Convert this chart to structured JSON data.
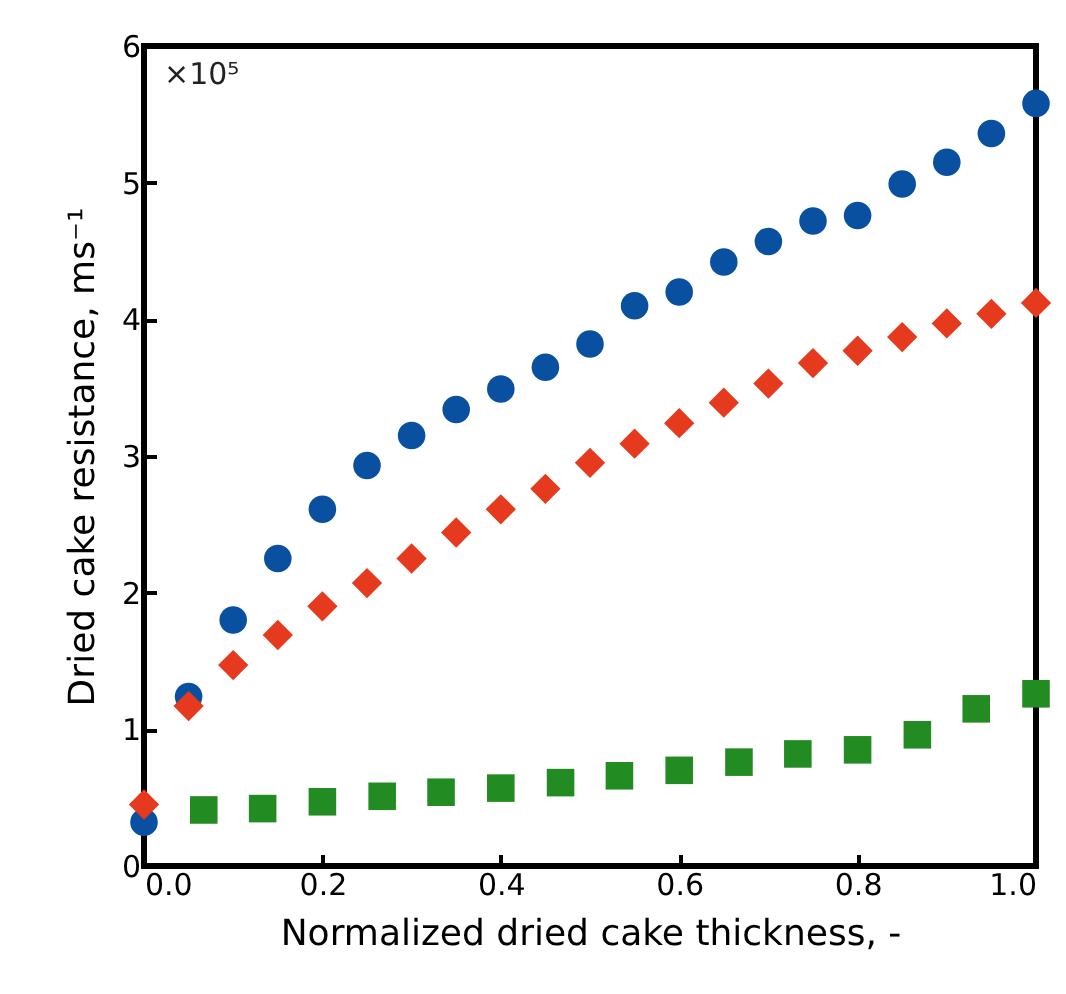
{
  "chart_data": {
    "type": "scatter",
    "xlabel": "Normalized dried cake thickness, -",
    "ylabel": "Dried cake resistance, ms⁻¹",
    "annotations": [
      "×10⁵"
    ],
    "xlim": [
      0,
      1
    ],
    "ylim": [
      0,
      6
    ],
    "xticks": [
      {
        "value": 0,
        "label": "0.0"
      },
      0.2,
      0.4,
      0.6,
      0.8,
      {
        "value": 1,
        "label": "1.0"
      }
    ],
    "yticks": [
      0,
      1,
      2,
      3,
      4,
      5,
      6
    ],
    "series": [
      {
        "color": "#0a50a0",
        "marker": "circle",
        "x": [
          0,
          0.05,
          0.1,
          0.15,
          0.2,
          0.25,
          0.3,
          0.35,
          0.4,
          0.45,
          0.5,
          0.55,
          0.6,
          0.65,
          0.7,
          0.75,
          0.8,
          0.85,
          0.9,
          0.95,
          1
        ],
        "values": [
          0.32,
          1.24,
          1.8,
          2.25,
          2.61,
          2.93,
          3.15,
          3.34,
          3.49,
          3.65,
          3.82,
          4.1,
          4.2,
          4.42,
          4.57,
          4.72,
          4.76,
          4.99,
          5.15,
          5.36,
          5.58
        ]
      },
      {
        "color": "#e63a1e",
        "marker": "diamond",
        "x": [
          0,
          0.05,
          0.1,
          0.15,
          0.2,
          0.25,
          0.3,
          0.35,
          0.4,
          0.45,
          0.5,
          0.55,
          0.6,
          0.65,
          0.7,
          0.75,
          0.8,
          0.85,
          0.9,
          0.95,
          1
        ],
        "values": [
          0.45,
          1.17,
          1.47,
          1.69,
          1.9,
          2.07,
          2.25,
          2.44,
          2.61,
          2.76,
          2.95,
          3.09,
          3.24,
          3.39,
          3.53,
          3.68,
          3.77,
          3.87,
          3.97,
          4.04,
          4.12
        ]
      },
      {
        "color": "#228b22",
        "marker": "square",
        "x": [
          0.067,
          0.133,
          0.2,
          0.267,
          0.333,
          0.4,
          0.467,
          0.533,
          0.6,
          0.667,
          0.733,
          0.8,
          0.867,
          0.933,
          1
        ],
        "values": [
          0.41,
          0.42,
          0.47,
          0.51,
          0.54,
          0.57,
          0.61,
          0.66,
          0.7,
          0.76,
          0.82,
          0.85,
          0.96,
          1.15,
          1.26
        ]
      }
    ]
  }
}
